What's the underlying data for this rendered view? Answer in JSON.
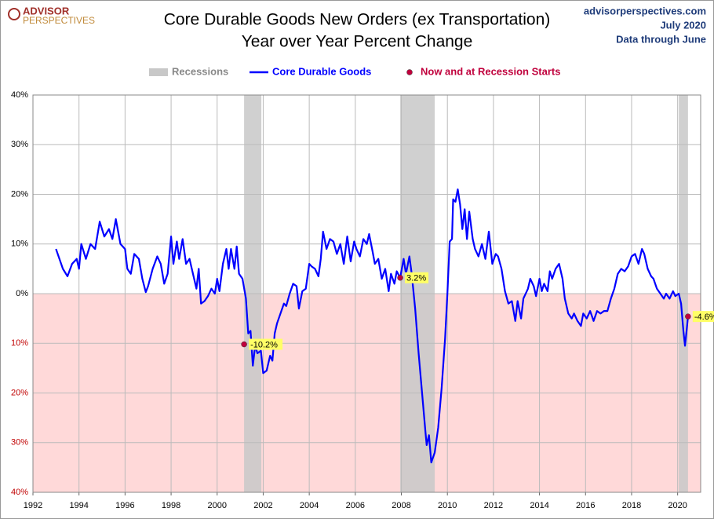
{
  "chart_data": {
    "type": "line",
    "title": "Core Durable Goods New Orders (ex Transportation)",
    "subtitle": "Year over Year Percent Change",
    "logo_text": [
      "ADVISOR",
      "PERSPECTIVES"
    ],
    "annotations": [
      "advisorperspectives.com",
      "July 2020",
      "Data through June"
    ],
    "xlim": [
      1992,
      2021
    ],
    "xticks": [
      1992,
      1994,
      1996,
      1998,
      2000,
      2002,
      2004,
      2006,
      2008,
      2010,
      2012,
      2014,
      2016,
      2018,
      2020
    ],
    "ylim": [
      -40,
      40
    ],
    "yticks": [
      {
        "value": -40,
        "label": "40%"
      },
      {
        "value": -30,
        "label": "30%"
      },
      {
        "value": -20,
        "label": "20%"
      },
      {
        "value": -10,
        "label": "10%"
      },
      {
        "value": 0,
        "label": "0%"
      },
      {
        "value": 10,
        "label": "10%"
      },
      {
        "value": 20,
        "label": "20%"
      },
      {
        "value": 30,
        "label": "30%"
      },
      {
        "value": 40,
        "label": "40%"
      }
    ],
    "grid": true,
    "negative_shading": "#ffd9d9",
    "negative_tick_color": "#c00000",
    "legend": "top",
    "recessions": {
      "name": "Recessions",
      "color": "#c8c8c8",
      "spans": [
        [
          2001.17,
          2001.92
        ],
        [
          2007.95,
          2009.45
        ],
        [
          2020.05,
          2020.45
        ]
      ]
    },
    "series": [
      {
        "name": "Core Durable Goods",
        "color": "#0000ff",
        "x": [
          1993.0,
          1993.3,
          1993.5,
          1993.7,
          1993.9,
          1994.0,
          1994.1,
          1994.3,
          1994.5,
          1994.7,
          1994.9,
          1995.1,
          1995.3,
          1995.45,
          1995.6,
          1995.8,
          1996.0,
          1996.1,
          1996.25,
          1996.4,
          1996.6,
          1996.75,
          1996.9,
          1997.0,
          1997.2,
          1997.4,
          1997.55,
          1997.7,
          1997.85,
          1998.0,
          1998.1,
          1998.25,
          1998.35,
          1998.5,
          1998.65,
          1998.8,
          1998.95,
          1999.1,
          1999.2,
          1999.3,
          1999.45,
          1999.6,
          1999.75,
          1999.9,
          2000.0,
          2000.1,
          2000.25,
          2000.4,
          2000.5,
          2000.6,
          2000.75,
          2000.85,
          2000.95,
          2001.1,
          2001.25,
          2001.35,
          2001.45,
          2001.55,
          2001.65,
          2001.75,
          2001.9,
          2002.0,
          2002.15,
          2002.3,
          2002.4,
          2002.5,
          2002.6,
          2002.75,
          2002.9,
          2003.0,
          2003.15,
          2003.3,
          2003.45,
          2003.55,
          2003.7,
          2003.85,
          2004.0,
          2004.1,
          2004.25,
          2004.4,
          2004.5,
          2004.6,
          2004.75,
          2004.9,
          2005.05,
          2005.2,
          2005.35,
          2005.5,
          2005.65,
          2005.8,
          2005.95,
          2006.05,
          2006.2,
          2006.35,
          2006.5,
          2006.6,
          2006.75,
          2006.85,
          2007.0,
          2007.15,
          2007.3,
          2007.45,
          2007.55,
          2007.7,
          2007.8,
          2007.95,
          2008.1,
          2008.2,
          2008.35,
          2008.45,
          2008.6,
          2008.75,
          2008.9,
          2009.05,
          2009.1,
          2009.2,
          2009.3,
          2009.45,
          2009.6,
          2009.75,
          2009.9,
          2010.0,
          2010.1,
          2010.2,
          2010.25,
          2010.35,
          2010.45,
          2010.55,
          2010.65,
          2010.75,
          2010.85,
          2010.95,
          2011.1,
          2011.2,
          2011.35,
          2011.5,
          2011.65,
          2011.8,
          2011.95,
          2012.1,
          2012.2,
          2012.35,
          2012.5,
          2012.65,
          2012.8,
          2012.95,
          2013.05,
          2013.2,
          2013.3,
          2013.5,
          2013.6,
          2013.75,
          2013.85,
          2014.0,
          2014.1,
          2014.2,
          2014.35,
          2014.45,
          2014.55,
          2014.7,
          2014.85,
          2015.0,
          2015.1,
          2015.25,
          2015.4,
          2015.5,
          2015.65,
          2015.8,
          2015.9,
          2016.05,
          2016.2,
          2016.35,
          2016.5,
          2016.65,
          2016.8,
          2016.95,
          2017.1,
          2017.25,
          2017.4,
          2017.55,
          2017.7,
          2017.85,
          2018.0,
          2018.15,
          2018.3,
          2018.45,
          2018.55,
          2018.7,
          2018.85,
          2018.95,
          2019.1,
          2019.25,
          2019.4,
          2019.5,
          2019.65,
          2019.8,
          2019.9,
          2020.05,
          2020.15,
          2020.25,
          2020.32,
          2020.4,
          2020.45
        ],
        "values": [
          9,
          5,
          3.5,
          6,
          7,
          5,
          10,
          7,
          10,
          9,
          14.5,
          11.5,
          13,
          11,
          15,
          10,
          9,
          5,
          4,
          8,
          7,
          3,
          0.3,
          1.5,
          5,
          7.5,
          6,
          2,
          4,
          11.5,
          6,
          10.5,
          7,
          11,
          6,
          7,
          4,
          1,
          5,
          -2,
          -1.5,
          -0.5,
          1,
          0,
          3,
          0.5,
          6,
          9,
          5,
          9,
          5,
          9.5,
          4,
          3,
          -1,
          -8,
          -7.5,
          -14.5,
          -10.5,
          -12,
          -11.5,
          -16,
          -15.5,
          -12.5,
          -13.5,
          -8,
          -6,
          -4,
          -2,
          -2.5,
          0,
          2,
          1.5,
          -3,
          0.5,
          1,
          6,
          5.5,
          5,
          3.5,
          7,
          12.5,
          9,
          11,
          10.5,
          8,
          10,
          6,
          11.5,
          6.5,
          10.5,
          9,
          7.5,
          11,
          10,
          12,
          8.5,
          6,
          7,
          3,
          5,
          0.5,
          4,
          2,
          4.5,
          3.2,
          7,
          4,
          7.5,
          4,
          -3,
          -12,
          -20,
          -28,
          -30.5,
          -28.5,
          -34,
          -32,
          -27,
          -19,
          -9,
          0,
          10.5,
          11,
          19,
          18.5,
          21,
          18,
          13,
          17,
          11,
          16.5,
          11,
          9,
          7.5,
          10,
          7,
          12.5,
          6,
          8,
          7.5,
          5,
          0.5,
          -2,
          -1.5,
          -5.5,
          -1.5,
          -5,
          -1,
          1,
          3,
          1.5,
          -0.5,
          3,
          0.5,
          2,
          0.5,
          4.5,
          3,
          5,
          6,
          3,
          -1,
          -4,
          -5,
          -4,
          -5.5,
          -6.5,
          -4,
          -5,
          -3.5,
          -5.5,
          -3.5,
          -4,
          -3.5,
          -3.5,
          -1,
          1,
          4,
          5,
          4.5,
          5.5,
          7.5,
          8,
          6,
          9,
          8,
          5,
          3.5,
          3,
          1,
          0,
          -1,
          0,
          -1,
          0.5,
          -0.5,
          0,
          -2,
          -7.5,
          -10.5,
          -7,
          -4.6
        ]
      },
      {
        "name": "Now and at Recession Starts",
        "color": "#c0003c",
        "x": [
          2001.17,
          2007.95,
          2020.45
        ],
        "values": [
          -10.2,
          3.2,
          -4.6
        ],
        "value_labels": [
          "-10.2%",
          "3.2%",
          "-4.6%"
        ]
      }
    ]
  }
}
